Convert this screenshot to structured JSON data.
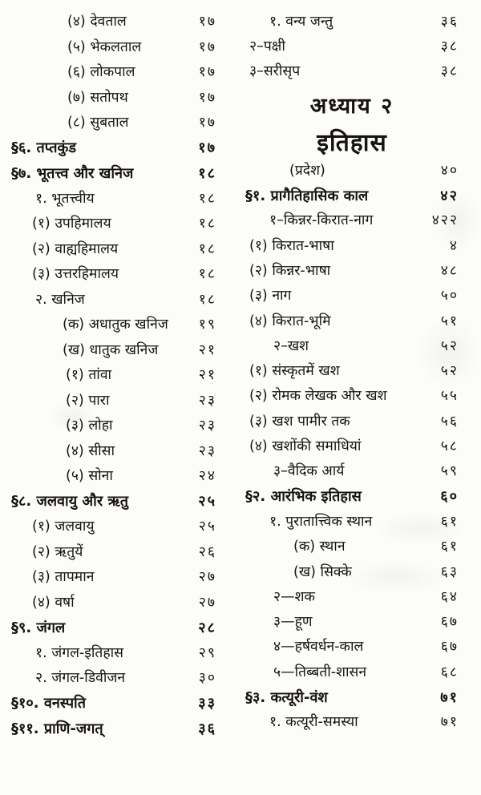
{
  "document": {
    "language": "Hindi",
    "kind": "table-of-contents-scan"
  },
  "headings": {
    "chapter": "अध्याय २",
    "chapter_title": "इतिहास"
  },
  "toc": {
    "left": [
      {
        "label": "(४) देवताल",
        "page": "१७",
        "ind": 70
      },
      {
        "label": "(५) भेकलताल",
        "page": "१७",
        "ind": 70
      },
      {
        "label": "(६) लोकपाल",
        "page": "१७",
        "ind": 70
      },
      {
        "label": "(७) सतोपथ",
        "page": "१७",
        "ind": 70
      },
      {
        "label": "(८) सुबताल",
        "page": "१७",
        "ind": 70
      },
      {
        "label": "§६. तप्तकुंड",
        "page": "१७",
        "ind": 0,
        "bold": true
      },
      {
        "label": "§७. भूतत्त्व और खनिज",
        "page": "१८",
        "ind": 0,
        "bold": true
      },
      {
        "label": "१. भूतत्त्वीय",
        "page": "१८",
        "ind": 30
      },
      {
        "label": "(१) उपहिमालय",
        "page": "१८",
        "ind": 26
      },
      {
        "label": "(२) वाह्यहिमालय",
        "page": "१८",
        "ind": 26
      },
      {
        "label": "(३) उत्तरहिमालय",
        "page": "१८",
        "ind": 26
      },
      {
        "label": "२. खनिज",
        "page": "१८",
        "ind": 30
      },
      {
        "label": "(क) अधातुक खनिज",
        "page": "१९",
        "ind": 64
      },
      {
        "label": "(ख) धातुक खनिज",
        "page": "२१",
        "ind": 64
      },
      {
        "label": "(१) तांवा",
        "page": "२१",
        "ind": 68
      },
      {
        "label": "(२) पारा",
        "page": "२३",
        "ind": 68
      },
      {
        "label": "(३) लोहा",
        "page": "२३",
        "ind": 68
      },
      {
        "label": "(४) सीसा",
        "page": "२३",
        "ind": 68
      },
      {
        "label": "(५) सोना",
        "page": "२४",
        "ind": 68
      },
      {
        "label": "§८. जलवायु और ऋतु",
        "page": "२५",
        "ind": 0,
        "bold": true
      },
      {
        "label": "(१) जलवायु",
        "page": "२५",
        "ind": 26
      },
      {
        "label": "(२) ऋतुयें",
        "page": "२६",
        "ind": 26
      },
      {
        "label": "(३) तापमान",
        "page": "२७",
        "ind": 26
      },
      {
        "label": "(४) वर्षा",
        "page": "२७",
        "ind": 26
      },
      {
        "label": "§९. जंगल",
        "page": "२८",
        "ind": 0,
        "bold": true
      },
      {
        "label": "१. जंगल-इतिहास",
        "page": "२९",
        "ind": 30
      },
      {
        "label": "२. जंगल-डिवीजन",
        "page": "३०",
        "ind": 30
      },
      {
        "label": "§१०. वनस्पति",
        "page": "३३",
        "ind": 0,
        "bold": true
      },
      {
        "label": "§११. प्राणि-जगत्",
        "page": "३६",
        "ind": 0,
        "bold": true
      }
    ],
    "right": [
      {
        "label": "१. वन्य जन्तु",
        "page": "३६",
        "ind": 30
      },
      {
        "label": "२–पक्षी",
        "page": "३८",
        "ind": 5
      },
      {
        "label": "३–सरीसृप",
        "page": "३८",
        "ind": 5
      },
      {
        "heading": "अध्याय २",
        "level": 1
      },
      {
        "heading": "इतिहास",
        "level": 2
      },
      {
        "label": "(प्रदेश)",
        "page": "४०",
        "ind": 55
      },
      {
        "label": "§१. प्रागैतिहासिक काल",
        "page": "४२",
        "ind": 0,
        "bold": true
      },
      {
        "label": "१–किन्नर-किरात-नाग",
        "page": "४२२",
        "ind": 30
      },
      {
        "label": "(१) किरात-भाषा",
        "page": "४",
        "ind": 5
      },
      {
        "label": "(२) किन्नर-भाषा",
        "page": "४८",
        "ind": 5
      },
      {
        "label": "(३) नाग",
        "page": "५०",
        "ind": 5
      },
      {
        "label": "(४) किरात-भूमि",
        "page": "५१",
        "ind": 5
      },
      {
        "label": "२–खश",
        "page": "५२",
        "ind": 35
      },
      {
        "label": "(१) संस्कृतमें खश",
        "page": "५२",
        "ind": 5
      },
      {
        "label": "(२) रोमक लेखक और खश",
        "page": "५५",
        "ind": 5
      },
      {
        "label": "(३) खश पामीर तक",
        "page": "५६",
        "ind": 5
      },
      {
        "label": "(४) खशोंकी समाधियां",
        "page": "५८",
        "ind": 5
      },
      {
        "label": "३–वैदिक आर्य",
        "page": "५९",
        "ind": 35
      },
      {
        "label": "§२. आरंभिक इतिहास",
        "page": "६०",
        "ind": 0,
        "bold": true
      },
      {
        "label": "१. पुरातात्त्विक स्थान",
        "page": "६१",
        "ind": 30
      },
      {
        "label": "(क) स्थान",
        "page": "६१",
        "ind": 60
      },
      {
        "label": "(ख) सिक्के",
        "page": "६३",
        "ind": 60
      },
      {
        "label": "२—शक",
        "page": "६४",
        "ind": 35
      },
      {
        "label": "३—हूण",
        "page": "६७",
        "ind": 35
      },
      {
        "label": "४—हर्षवर्धन-काल",
        "page": "६७",
        "ind": 35
      },
      {
        "label": "५—तिब्बती-शासन",
        "page": "६८",
        "ind": 35
      },
      {
        "label": "§३. कत्यूरी-वंश",
        "page": "७१",
        "ind": 0,
        "bold": true
      },
      {
        "label": "१. कत्यूरी-समस्या",
        "page": "७१",
        "ind": 30
      }
    ]
  }
}
